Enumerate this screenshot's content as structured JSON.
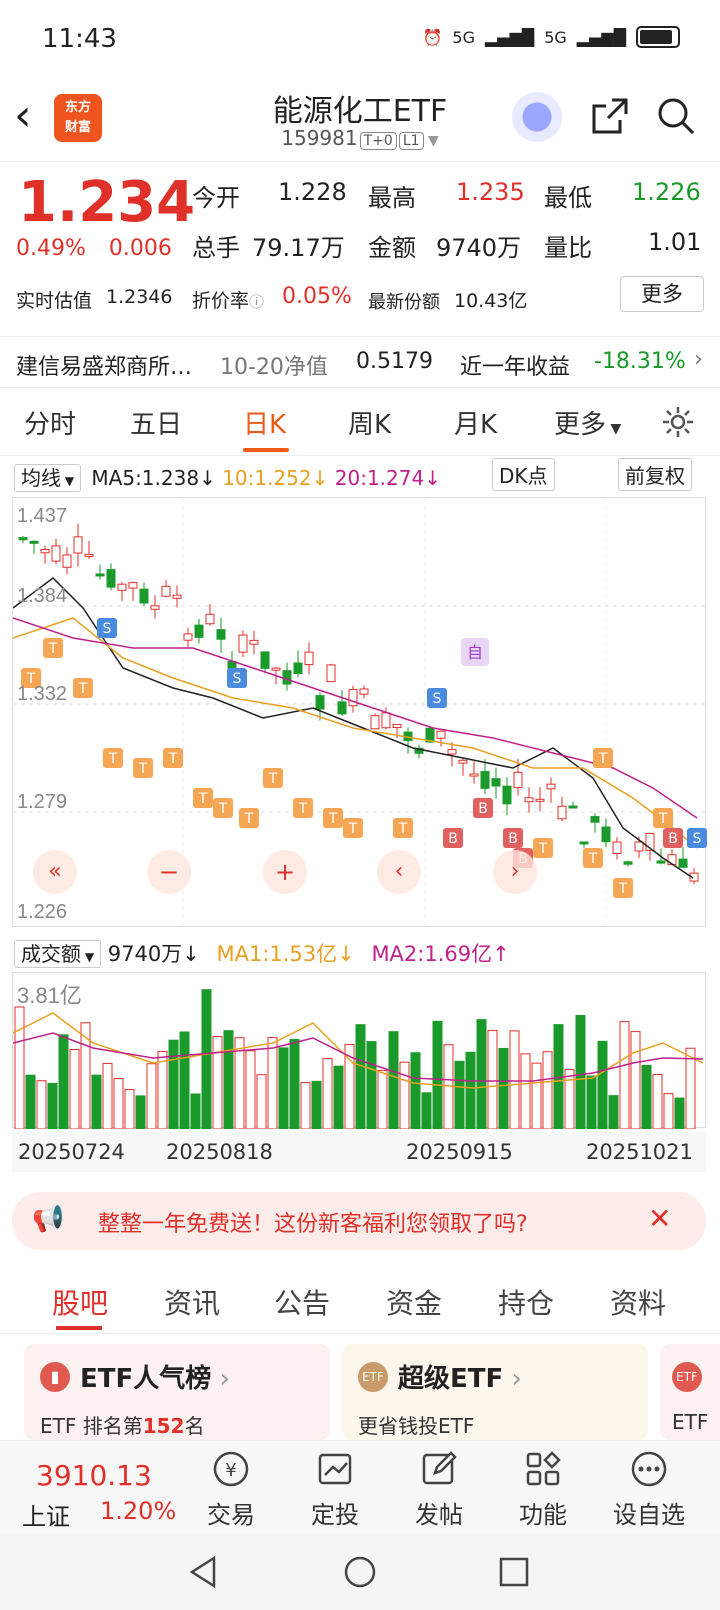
{
  "status": {
    "time": "11:43",
    "signal1": "5G",
    "signal2": "5G"
  },
  "header": {
    "logo_line1": "东方",
    "logo_line2": "财富",
    "title": "能源化工ETF",
    "code": "159981",
    "tag1": "T+0",
    "tag2": "L1"
  },
  "quote": {
    "price": "1.234",
    "pct": "0.49%",
    "chg": "0.006",
    "open_label": "今开",
    "open": "1.228",
    "high_label": "最高",
    "high": "1.235",
    "low_label": "最低",
    "low": "1.226",
    "vol_label": "总手",
    "vol": "79.17万",
    "amt_label": "金额",
    "amt": "9740万",
    "ratio_label": "量比",
    "ratio": "1.01",
    "est_label": "实时估值",
    "est": "1.2346",
    "disc_label": "折价率",
    "disc": "0.05%",
    "share_label": "最新份额",
    "share": "10.43亿",
    "more": "更多"
  },
  "nav": {
    "fund": "建信易盛郑商所…",
    "nav_label": "10-20净值",
    "nav": "0.5179",
    "ret_label": "近一年收益",
    "ret": "-18.31%"
  },
  "chart_tabs": [
    "分时",
    "五日",
    "日K",
    "周K",
    "月K",
    "更多"
  ],
  "indicators": {
    "ma_select": "均线",
    "ma5": "MA5:1.238↓",
    "ma10": "10:1.252↓",
    "ma20": "20:1.274↓",
    "dk": "DK点",
    "fq": "前复权"
  },
  "colors": {
    "up": "#e0302a",
    "down": "#1a9a2a",
    "ma5": "#222222",
    "ma10": "#e8a020",
    "ma20": "#c0208a",
    "accent": "#ef5a1a"
  },
  "kline_axis": [
    "1.437",
    "1.384",
    "1.332",
    "1.279",
    "1.226"
  ],
  "kline_marks": {
    "s": "S",
    "t": "T",
    "b": "B",
    "zi": "自"
  },
  "volume": {
    "select": "成交额",
    "value": "9740万↓",
    "ma1": "MA1:1.53亿↓",
    "ma2": "MA2:1.69亿↑",
    "axis_max": "3.81亿"
  },
  "dates": [
    "20250724",
    "20250818",
    "20250915",
    "20251021"
  ],
  "banner": {
    "text": "整整一年免费送！这份新客福利您领取了吗?"
  },
  "sections": [
    "股吧",
    "资讯",
    "公告",
    "资金",
    "持仓",
    "资料"
  ],
  "cards": [
    {
      "title": "ETF人气榜",
      "sub_pre": "ETF 排名第",
      "sub_num": "152",
      "sub_post": "名"
    },
    {
      "title": "超级ETF",
      "sub": "更省钱投ETF"
    },
    {
      "sub": "ETF"
    }
  ],
  "bottom": {
    "index_value": "3910.13",
    "index_name": "上证",
    "index_pct": "1.20%",
    "trade": "交易",
    "fixed": "定投",
    "post": "发帖",
    "func": "功能",
    "watch": "设自选"
  }
}
